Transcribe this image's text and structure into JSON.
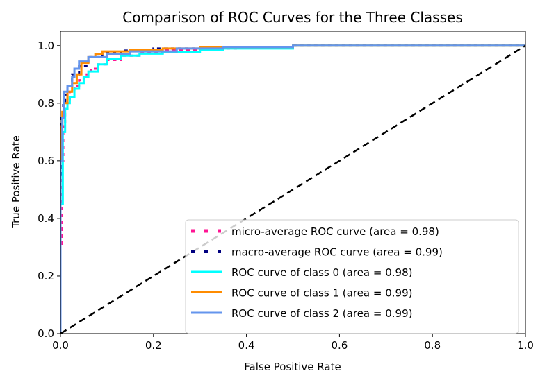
{
  "chart_data": {
    "type": "line",
    "title": "Comparison of ROC Curves for the Three Classes",
    "xlabel": "False Positive Rate",
    "ylabel": "True Positive Rate",
    "xlim": [
      0.0,
      1.0
    ],
    "ylim": [
      0.0,
      1.05
    ],
    "x_ticks": [
      0.0,
      0.2,
      0.4,
      0.6,
      0.8,
      1.0
    ],
    "x_tick_labels": [
      "0.0",
      "0.2",
      "0.4",
      "0.6",
      "0.8",
      "1.0"
    ],
    "y_ticks": [
      0.0,
      0.2,
      0.4,
      0.6,
      0.8,
      1.0
    ],
    "y_tick_labels": [
      "0.0",
      "0.2",
      "0.4",
      "0.6",
      "0.8",
      "1.0"
    ],
    "grid": false,
    "legend_position": "lower-right",
    "series": [
      {
        "name": "micro-average ROC curve (area = 0.98)",
        "color": "#ff1493",
        "style": "dotted",
        "x": [
          0.0,
          0.0,
          0.003,
          0.003,
          0.006,
          0.006,
          0.01,
          0.01,
          0.015,
          0.015,
          0.02,
          0.02,
          0.03,
          0.03,
          0.04,
          0.04,
          0.05,
          0.05,
          0.065,
          0.065,
          0.08,
          0.08,
          0.1,
          0.1,
          0.13,
          0.13,
          0.17,
          0.17,
          0.22,
          0.22,
          0.3,
          0.3,
          0.38,
          0.38,
          0.5,
          0.5,
          0.6,
          0.6,
          1.0
        ],
        "y": [
          0.0,
          0.3,
          0.3,
          0.6,
          0.6,
          0.72,
          0.72,
          0.78,
          0.78,
          0.81,
          0.81,
          0.84,
          0.84,
          0.86,
          0.86,
          0.88,
          0.88,
          0.9,
          0.9,
          0.92,
          0.92,
          0.935,
          0.935,
          0.95,
          0.95,
          0.965,
          0.965,
          0.975,
          0.975,
          0.985,
          0.985,
          0.99,
          0.99,
          0.995,
          0.995,
          1.0,
          1.0,
          1.0,
          1.0
        ]
      },
      {
        "name": "macro-average ROC curve (area = 0.99)",
        "color": "#000080",
        "style": "dotted",
        "x": [
          0.0,
          0.0,
          0.003,
          0.003,
          0.006,
          0.006,
          0.01,
          0.01,
          0.015,
          0.015,
          0.025,
          0.025,
          0.04,
          0.04,
          0.06,
          0.06,
          0.09,
          0.09,
          0.13,
          0.13,
          0.2,
          0.2,
          0.3,
          0.3,
          0.5,
          0.5,
          1.0
        ],
        "y": [
          0.0,
          0.55,
          0.55,
          0.75,
          0.75,
          0.8,
          0.8,
          0.83,
          0.83,
          0.86,
          0.86,
          0.9,
          0.9,
          0.93,
          0.93,
          0.96,
          0.96,
          0.975,
          0.975,
          0.983,
          0.983,
          0.99,
          0.99,
          0.995,
          0.995,
          1.0,
          1.0
        ]
      },
      {
        "name": "ROC curve of class 0 (area = 0.98)",
        "color": "#00ffff",
        "style": "solid",
        "x": [
          0.0,
          0.0,
          0.005,
          0.005,
          0.01,
          0.01,
          0.015,
          0.015,
          0.02,
          0.02,
          0.03,
          0.03,
          0.04,
          0.04,
          0.05,
          0.05,
          0.06,
          0.06,
          0.08,
          0.08,
          0.1,
          0.1,
          0.13,
          0.13,
          0.17,
          0.17,
          0.22,
          0.22,
          0.3,
          0.3,
          0.35,
          0.35,
          0.5,
          0.5,
          1.0
        ],
        "y": [
          0.0,
          0.45,
          0.45,
          0.7,
          0.7,
          0.78,
          0.78,
          0.8,
          0.8,
          0.82,
          0.82,
          0.85,
          0.85,
          0.87,
          0.87,
          0.89,
          0.89,
          0.91,
          0.91,
          0.935,
          0.935,
          0.955,
          0.955,
          0.965,
          0.965,
          0.972,
          0.972,
          0.978,
          0.978,
          0.985,
          0.985,
          0.99,
          0.99,
          1.0,
          1.0
        ]
      },
      {
        "name": "ROC curve of class 1 (area = 0.99)",
        "color": "#ff8c00",
        "style": "solid",
        "x": [
          0.0,
          0.0,
          0.004,
          0.004,
          0.008,
          0.008,
          0.015,
          0.015,
          0.025,
          0.025,
          0.035,
          0.035,
          0.045,
          0.045,
          0.06,
          0.06,
          0.075,
          0.075,
          0.09,
          0.09,
          0.15,
          0.15,
          0.22,
          0.22,
          0.3,
          0.3,
          0.5,
          0.5,
          1.0
        ],
        "y": [
          0.0,
          0.72,
          0.72,
          0.77,
          0.77,
          0.8,
          0.8,
          0.84,
          0.84,
          0.87,
          0.87,
          0.9,
          0.9,
          0.94,
          0.94,
          0.96,
          0.96,
          0.97,
          0.97,
          0.98,
          0.98,
          0.985,
          0.985,
          0.99,
          0.99,
          0.995,
          0.995,
          1.0,
          1.0
        ]
      },
      {
        "name": "ROC curve of class 2 (area = 0.99)",
        "color": "#6495ed",
        "style": "solid",
        "x": [
          0.0,
          0.0,
          0.004,
          0.004,
          0.008,
          0.008,
          0.015,
          0.015,
          0.025,
          0.025,
          0.03,
          0.03,
          0.04,
          0.04,
          0.06,
          0.06,
          0.1,
          0.1,
          0.15,
          0.15,
          0.25,
          0.25,
          0.35,
          0.35,
          0.5,
          0.5,
          1.0
        ],
        "y": [
          0.0,
          0.6,
          0.6,
          0.75,
          0.75,
          0.84,
          0.84,
          0.86,
          0.86,
          0.89,
          0.89,
          0.92,
          0.92,
          0.945,
          0.945,
          0.96,
          0.96,
          0.97,
          0.97,
          0.98,
          0.98,
          0.99,
          0.99,
          0.995,
          0.995,
          1.0,
          1.0
        ]
      },
      {
        "name": "chance",
        "color": "#000000",
        "style": "dashed",
        "show_in_legend": false,
        "x": [
          0.0,
          1.0
        ],
        "y": [
          0.0,
          1.0
        ]
      }
    ]
  }
}
